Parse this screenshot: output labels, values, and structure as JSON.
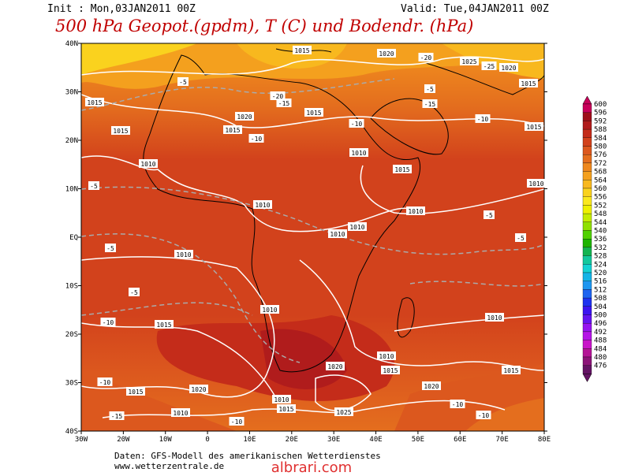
{
  "header": {
    "init": "Init : Mon,03JAN2011 00Z",
    "valid": "Valid: Tue,04JAN2011 00Z",
    "title": "500 hPa Geopot.(gpdm), T (C) und Bodendr. (hPa)"
  },
  "map": {
    "lat_labels": [
      "40N",
      "30N",
      "20N",
      "10N",
      "EQ",
      "10S",
      "20S",
      "30S",
      "40S"
    ],
    "lon_labels": [
      "30W",
      "20W",
      "10W",
      "0",
      "10E",
      "20E",
      "30E",
      "40E",
      "50E",
      "60E",
      "70E",
      "80E"
    ],
    "contour_labels": [
      "1015",
      "1020",
      "-20",
      "1025",
      "-25",
      "1020",
      "1015",
      "-5",
      "1015",
      "1015",
      "-5",
      "-15",
      "-20",
      "-15",
      "-10",
      "-10",
      "1015",
      "1015",
      "1020",
      "1015",
      "-10",
      "1010",
      "1010",
      "1015",
      "-5",
      "1010",
      "1010",
      "1010",
      "-5",
      "1010",
      "1010",
      "-5",
      "-5",
      "1010",
      "-5",
      "1010",
      "1010",
      "1015",
      "-10",
      "1010",
      "1020",
      "1015",
      "1015",
      "-10",
      "1015",
      "1020",
      "1010",
      "1015",
      "1025",
      "1020",
      "-10",
      "-10",
      "-15",
      "1010",
      "-10"
    ]
  },
  "colorbar": {
    "levels": [
      600,
      596,
      592,
      588,
      584,
      580,
      576,
      572,
      568,
      564,
      560,
      556,
      552,
      548,
      544,
      540,
      536,
      532,
      528,
      524,
      520,
      516,
      512,
      508,
      504,
      500,
      496,
      492,
      488,
      484,
      480,
      476
    ],
    "colors": [
      "#c8005a",
      "#9e0f1a",
      "#b01c1c",
      "#c42c1a",
      "#d2421c",
      "#dc581e",
      "#e46e1e",
      "#ee881e",
      "#f4a01e",
      "#f8b81e",
      "#fad21e",
      "#fae81e",
      "#eef000",
      "#c4ec00",
      "#90e000",
      "#50d000",
      "#1eb400",
      "#14b450",
      "#14c89c",
      "#14d2d2",
      "#14b4e6",
      "#1e96f0",
      "#1e64f0",
      "#1e32f0",
      "#3c14f0",
      "#6414f0",
      "#9614f0",
      "#b414e6",
      "#c814c8",
      "#b41496",
      "#8c1478",
      "#641464"
    ]
  },
  "footer": {
    "source": "Daten: GFS-Modell des amerikanischen Wetterdienstes",
    "site": "www.wetterzentrale.de",
    "watermark": "albrari.com"
  }
}
